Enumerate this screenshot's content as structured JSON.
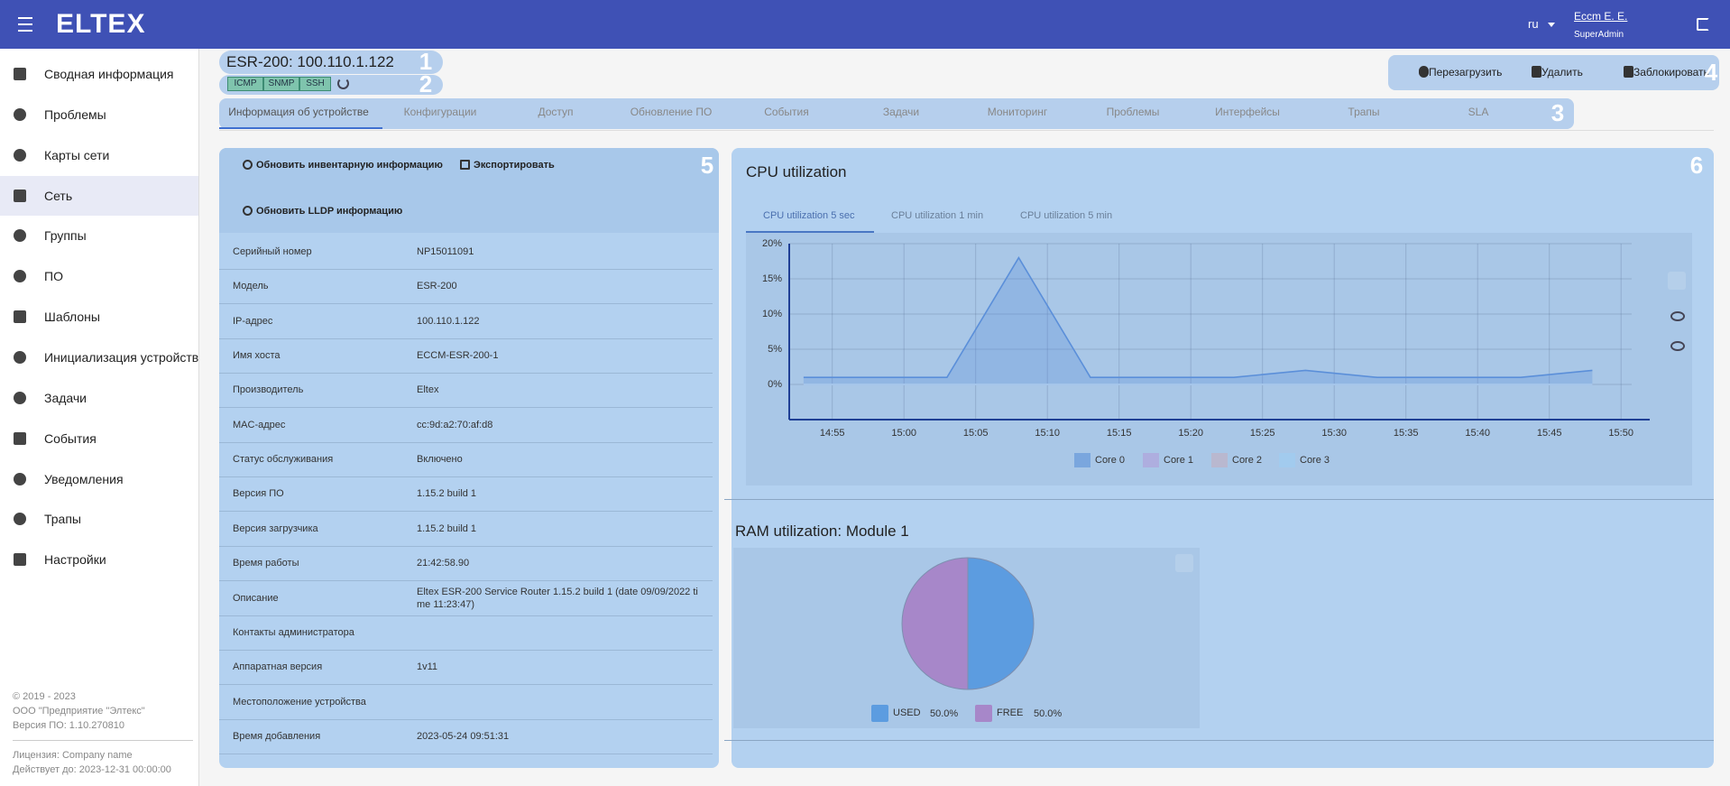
{
  "topbar": {
    "logo": "ELTEX",
    "language": "ru",
    "user_name": "Eccm E. E.",
    "user_role": "SuperAdmin"
  },
  "sidebar": {
    "items": [
      "Сводная информация",
      "Проблемы",
      "Карты сети",
      "Сеть",
      "Группы",
      "ПО",
      "Шаблоны",
      "Инициализация устройств",
      "Задачи",
      "События",
      "Уведомления",
      "Трапы",
      "Настройки"
    ],
    "footer": {
      "copyright": "© 2019 - 2023",
      "company": "ООО \"Предприятие \"Элтекс\"",
      "version": "Версия ПО: 1.10.270810",
      "license": "Лицензия: Company name",
      "valid_until": "Действует до: 2023-12-31 00:00:00"
    }
  },
  "device": {
    "title": "ESR-200: 100.110.1.122",
    "protocols": [
      "ICMP",
      "SNMP",
      "SSH"
    ],
    "actions": [
      "Перезагрузить",
      "Удалить",
      "Заблокировать"
    ]
  },
  "tabs": [
    "Информация об устройстве",
    "Конфигурации",
    "Доступ",
    "Обновление ПО",
    "События",
    "Задачи",
    "Мониторинг",
    "Проблемы",
    "Интерфейсы",
    "Трапы",
    "SLA"
  ],
  "markers": [
    "1",
    "2",
    "3",
    "4",
    "5",
    "6"
  ],
  "info_panel": {
    "buttons": [
      "Обновить инвентарную информацию",
      "Экспортировать",
      "Обновить LLDP информацию"
    ],
    "rows": [
      {
        "label": "Серийный номер",
        "value": "NP15011091"
      },
      {
        "label": "Модель",
        "value": "ESR-200"
      },
      {
        "label": "IP-адрес",
        "value": "100.110.1.122"
      },
      {
        "label": "Имя хоста",
        "value": "ECCM-ESR-200-1"
      },
      {
        "label": "Производитель",
        "value": "Eltex"
      },
      {
        "label": "MAC-адрес",
        "value": "cc:9d:a2:70:af:d8"
      },
      {
        "label": "Статус обслуживания",
        "value": "Включено"
      },
      {
        "label": "Версия ПО",
        "value": "1.15.2 build 1"
      },
      {
        "label": "Версия загрузчика",
        "value": "1.15.2 build 1"
      },
      {
        "label": "Время работы",
        "value": "21:42:58.90"
      },
      {
        "label": "Описание",
        "value": "Eltex ESR-200 Service Router 1.15.2 build 1 (date 09/09/2022 time 11:23:47)"
      },
      {
        "label": "Контакты администратора"
      },
      {
        "label": "Аппаратная версия",
        "value": "1v11"
      },
      {
        "label": "Местоположение устройства"
      },
      {
        "label": "Время добавления",
        "value": "2023-05-24 09:51:31"
      }
    ]
  },
  "cpu_chart": {
    "type": "line",
    "title": "CPU utilization",
    "tabs": [
      "CPU utilization 5 sec",
      "CPU utilization 1 min",
      "CPU utilization 5 min"
    ],
    "x": [
      "14:53",
      "14:58",
      "15:03",
      "15:08",
      "15:13",
      "15:18",
      "15:23",
      "15:28",
      "15:33",
      "15:38",
      "15:43",
      "15:48"
    ],
    "series": [
      {
        "name": "Core 0",
        "color": "#5b8fd9",
        "values": [
          1,
          1,
          1,
          18,
          1,
          1,
          1,
          2,
          1,
          1,
          1,
          2
        ]
      },
      {
        "name": "Core 1",
        "color": "#b39ddb",
        "values": [
          0,
          0,
          0,
          0,
          0,
          0,
          0,
          0,
          0,
          0,
          0,
          0
        ]
      },
      {
        "name": "Core 2",
        "color": "#c5aec0",
        "values": [
          0,
          0,
          0,
          0,
          0,
          0,
          0,
          0,
          0,
          0,
          0,
          0
        ]
      },
      {
        "name": "Core 3",
        "color": "#9fcdf3",
        "values": [
          0,
          0,
          0,
          0,
          0,
          0,
          0,
          0,
          0,
          0,
          0,
          0
        ]
      }
    ],
    "xlim": [
      "14:52",
      "15:52"
    ],
    "xticks": [
      "14:55",
      "15:00",
      "15:05",
      "15:10",
      "15:15",
      "15:20",
      "15:25",
      "15:30",
      "15:35",
      "15:40",
      "15:45",
      "15:50"
    ],
    "ylim": [
      -5,
      20
    ],
    "yticks": [
      {
        "value": 0,
        "label": "0%"
      },
      {
        "value": 5,
        "label": "5%"
      },
      {
        "value": 10,
        "label": "10%"
      },
      {
        "value": 15,
        "label": "15%"
      },
      {
        "value": 20,
        "label": "20%"
      }
    ],
    "grid": true
  },
  "ram_chart": {
    "type": "pie",
    "title": "RAM utilization: Module 1",
    "categories": [
      "USED",
      "FREE"
    ],
    "values": [
      50,
      50
    ],
    "value_labels": [
      "50.0%",
      "50.0%"
    ],
    "colors": [
      "#5c9ce0",
      "#a787c9"
    ]
  }
}
